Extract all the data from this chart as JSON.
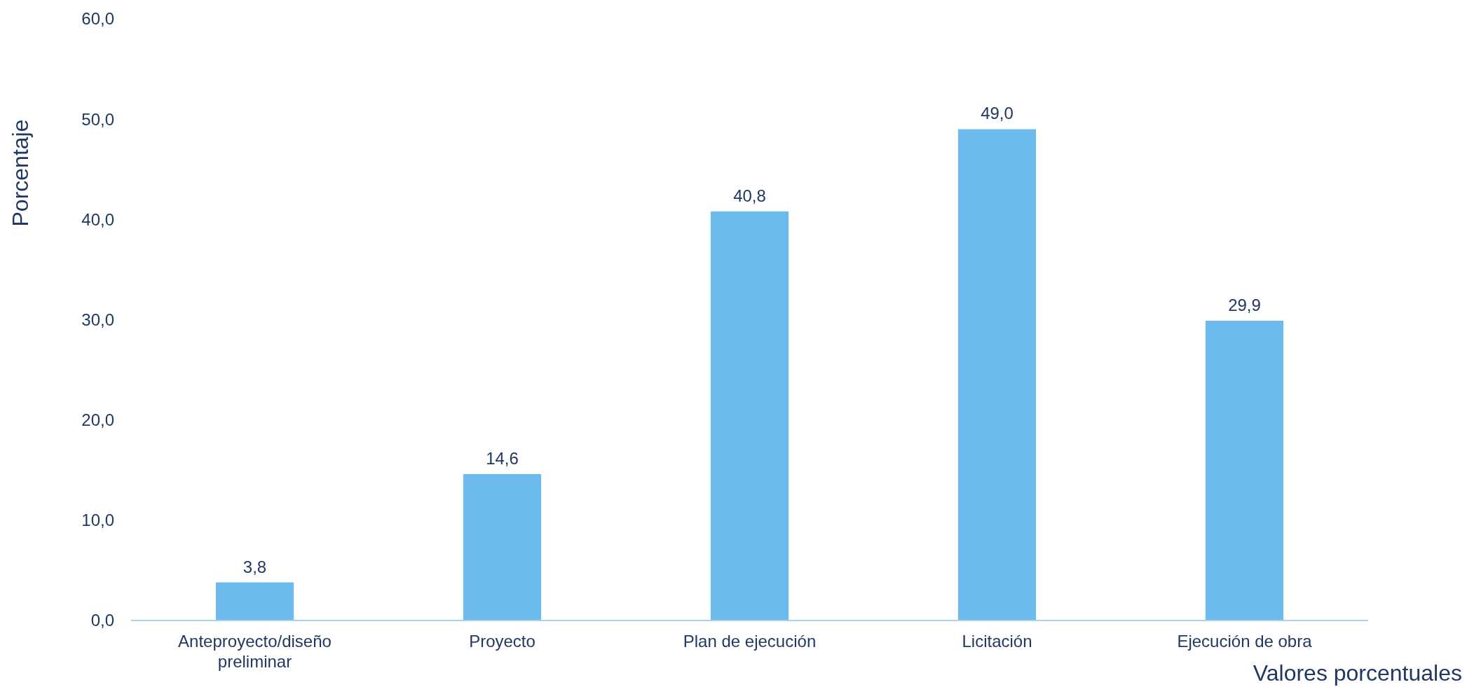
{
  "chart_data": {
    "type": "bar",
    "xlabel": "Valores porcentuales",
    "ylabel": "Porcentaje",
    "categories": [
      "Anteproyecto/diseño preliminar",
      "Proyecto",
      "Plan de ejecución",
      "Licitación",
      "Ejecución de obra"
    ],
    "values": [
      3.8,
      14.6,
      40.8,
      49.0,
      29.9
    ],
    "value_labels": [
      "3,8",
      "14,6",
      "40,8",
      "49,0",
      "29,9"
    ],
    "color": "#6dbaec",
    "ylim": [
      0,
      60
    ],
    "yticks": [
      {
        "value": 0,
        "label": "0,0"
      },
      {
        "value": 10,
        "label": "10,0"
      },
      {
        "value": 20,
        "label": "20,0"
      },
      {
        "value": 30,
        "label": "30,0"
      },
      {
        "value": 40,
        "label": "40,0"
      },
      {
        "value": 50,
        "label": "50,0"
      },
      {
        "value": 60,
        "label": "60,0"
      }
    ],
    "grid": false
  }
}
